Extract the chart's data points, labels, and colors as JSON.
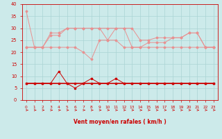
{
  "hours": [
    0,
    1,
    2,
    3,
    4,
    5,
    6,
    7,
    8,
    9,
    10,
    11,
    12,
    13,
    14,
    15,
    16,
    17,
    18,
    19,
    20,
    21,
    22,
    23
  ],
  "line1": [
    37,
    22,
    22,
    28,
    28,
    30,
    30,
    30,
    30,
    30,
    25,
    30,
    30,
    22,
    22,
    24,
    24,
    24,
    26,
    26,
    28,
    28,
    22,
    22
  ],
  "line2": [
    22,
    22,
    22,
    22,
    22,
    22,
    22,
    20,
    17,
    25,
    25,
    25,
    22,
    22,
    22,
    22,
    22,
    22,
    22,
    22,
    22,
    22,
    22,
    22
  ],
  "line3": [
    22,
    22,
    22,
    27,
    27,
    30,
    30,
    30,
    30,
    30,
    30,
    30,
    30,
    30,
    25,
    25,
    26,
    26,
    26,
    26,
    28,
    28,
    22,
    22
  ],
  "line_mean": [
    7,
    7,
    7,
    7,
    7,
    7,
    7,
    7,
    7,
    7,
    7,
    7,
    7,
    7,
    7,
    7,
    7,
    7,
    7,
    7,
    7,
    7,
    7,
    7
  ],
  "line_inst": [
    7,
    7,
    7,
    7,
    12,
    7,
    5,
    7,
    9,
    7,
    7,
    9,
    7,
    7,
    7,
    7,
    7,
    7,
    7,
    7,
    7,
    7,
    7,
    7
  ],
  "bg_color": "#cceaea",
  "grid_color": "#aad4d4",
  "dark_red": "#cc0000",
  "light_pink": "#e89090",
  "xlabel": "Vent moyen/en rafales ( km/h )",
  "ylim_min": 0,
  "ylim_max": 40,
  "yticks": [
    0,
    5,
    10,
    15,
    20,
    25,
    30,
    35,
    40
  ]
}
